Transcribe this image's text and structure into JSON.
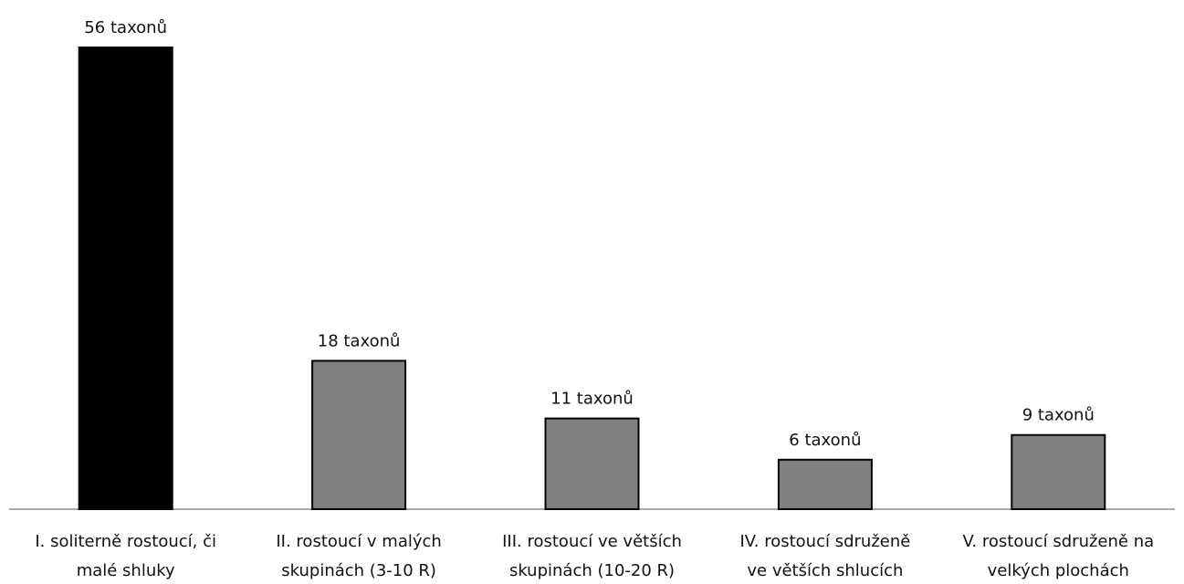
{
  "chart_data": {
    "type": "bar",
    "categories": [
      [
        "I. soliterně rostoucí, či",
        "malé shluky"
      ],
      [
        "II. rostoucí v malých",
        "skupinách (3-10 R)"
      ],
      [
        "III. rostoucí ve větších",
        "skupinách (10-20 R)"
      ],
      [
        "IV. rostoucí sdruženě",
        "ve větších shlucích"
      ],
      [
        "V. rostoucí sdruženě na",
        "velkých plochách"
      ]
    ],
    "values": [
      56,
      18,
      11,
      6,
      9
    ],
    "data_labels": [
      "56 taxonů",
      "18 taxonů",
      "11 taxonů",
      "6 taxonů",
      "9 taxonů"
    ],
    "bar_colors": [
      "#000000",
      "#808080",
      "#808080",
      "#808080",
      "#808080"
    ],
    "ylim": [
      0,
      56
    ],
    "grid": false,
    "title": "",
    "xlabel": "",
    "ylabel": ""
  }
}
